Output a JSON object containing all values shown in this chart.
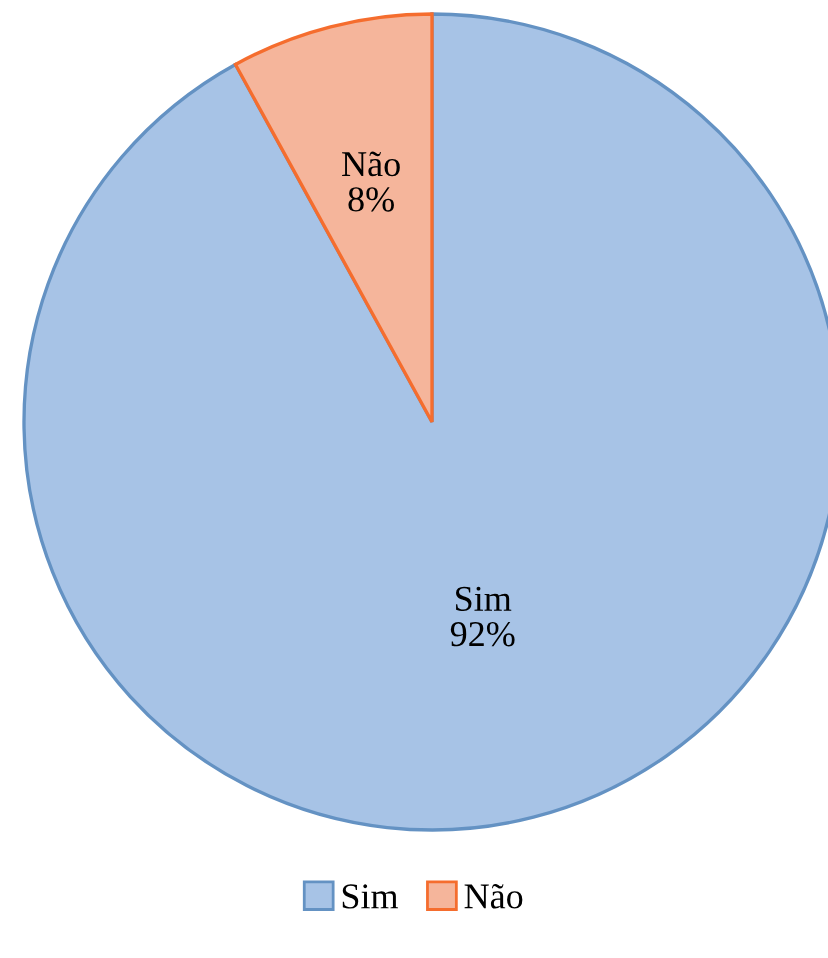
{
  "chart_data": {
    "type": "pie",
    "categories": [
      "Sim",
      "Não"
    ],
    "values": [
      92,
      8
    ],
    "colors": [
      "#a7c3e6",
      "#f5b59b"
    ],
    "value_labels": [
      "92%",
      "8%"
    ],
    "legend": "bottom"
  }
}
